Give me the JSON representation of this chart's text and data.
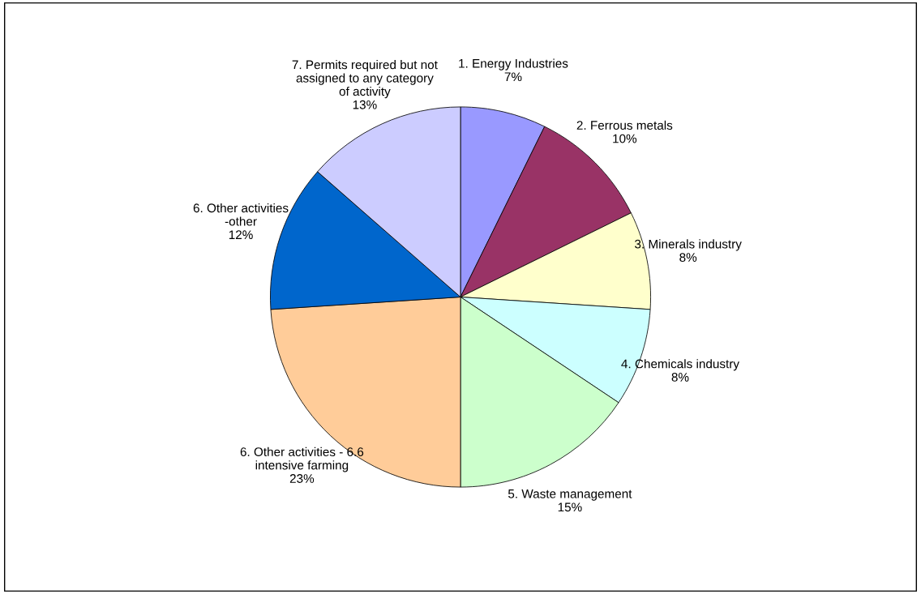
{
  "chart_data": {
    "type": "pie",
    "categories": [
      "1. Energy Industries",
      "2. Ferrous metals",
      "3. Minerals industry",
      "4. Chemicals industry",
      "5. Waste management",
      "6. Other activities - 6.6\nintensive farming",
      "6. Other activities\n-other",
      "7. Permits required but not\nassigned to any category\nof activity"
    ],
    "values": [
      7,
      10,
      8,
      8,
      15,
      23,
      12,
      13
    ],
    "value_labels": [
      "7%",
      "10%",
      "8%",
      "8%",
      "15%",
      "23%",
      "12%",
      "13%"
    ],
    "colors": [
      "#9999ff",
      "#993366",
      "#ffffcc",
      "#ccffff",
      "#ccffcc",
      "#ffcc99",
      "#0066cc",
      "#ccccff"
    ]
  }
}
